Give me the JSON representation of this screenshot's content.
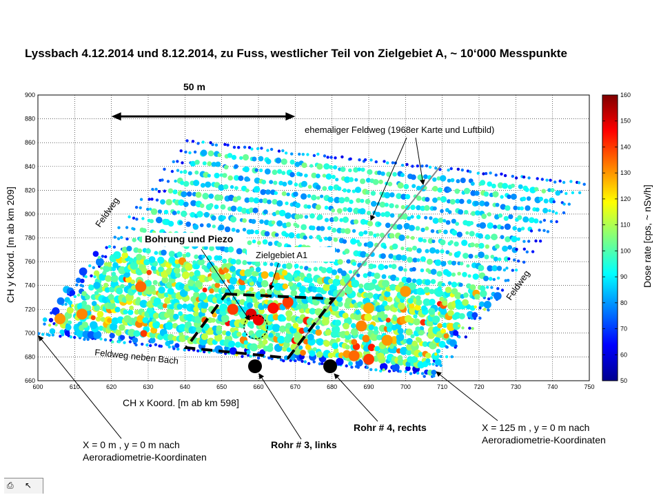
{
  "chart_data": {
    "type": "scatter",
    "title": "Lyssbach 4.12.2014 und 8.12.2014, zu Fuss, westlicher Teil von Zielgebiet A, ~ 10‘000 Messpunkte",
    "xlabel": "CH x Koord. [m ab km 598]",
    "ylabel": "CH y Koord. [m ab km 209]",
    "xlim": [
      600,
      750
    ],
    "ylim": [
      660,
      900
    ],
    "x_ticks": [
      "600",
      "610",
      "620",
      "630",
      "640",
      "650",
      "660",
      "670",
      "680",
      "690",
      "700",
      "710",
      "720",
      "730",
      "740",
      "750"
    ],
    "y_ticks": [
      "660",
      "680",
      "700",
      "720",
      "740",
      "760",
      "780",
      "800",
      "820",
      "840",
      "860",
      "880",
      "900"
    ],
    "grid": true,
    "colorbar": {
      "label": "Dose rate [cps, ~ nSv/h]",
      "range": [
        50,
        160
      ],
      "ticks": [
        "50",
        "60",
        "70",
        "80",
        "90",
        "100",
        "110",
        "120",
        "130",
        "140",
        "150",
        "160"
      ],
      "colormap": "jet"
    },
    "survey_area": {
      "corners": [
        [
          600,
          700
        ],
        [
          708,
          664
        ],
        [
          747,
          829
        ],
        [
          641,
          861
        ]
      ],
      "sampled_lines_count": 21,
      "approx_points": 10000
    },
    "hotspots": [
      {
        "x": 658,
        "y": 716,
        "value": 150
      },
      {
        "x": 664,
        "y": 721,
        "value": 145
      },
      {
        "x": 653,
        "y": 720,
        "value": 140
      },
      {
        "x": 660,
        "y": 711,
        "value": 148
      },
      {
        "x": 668,
        "y": 726,
        "value": 140
      },
      {
        "x": 628,
        "y": 739,
        "value": 135
      },
      {
        "x": 612,
        "y": 716,
        "value": 132
      },
      {
        "x": 606,
        "y": 712,
        "value": 130
      },
      {
        "x": 688,
        "y": 706,
        "value": 132
      },
      {
        "x": 686,
        "y": 681,
        "value": 135
      },
      {
        "x": 690,
        "y": 678,
        "value": 140
      },
      {
        "x": 695,
        "y": 694,
        "value": 130
      },
      {
        "x": 700,
        "y": 735,
        "value": 130
      },
      {
        "x": 690,
        "y": 721,
        "value": 128
      }
    ],
    "scale_bar": {
      "label": "50 m",
      "x_from": 620,
      "x_to": 670,
      "y": 882
    },
    "annotations": [
      {
        "id": "feldweg_1968",
        "text": "ehemaliger Feldweg (1968er Karte und Luftbild)"
      },
      {
        "id": "bohrung",
        "text": "Bohrung und Piezo"
      },
      {
        "id": "zielgebiet",
        "text": "Zielgebiet A1"
      },
      {
        "id": "feldweg_left",
        "text": "Feldweg"
      },
      {
        "id": "feldweg_right",
        "text": "Feldweg"
      },
      {
        "id": "feldweg_bach",
        "text": "Feldweg neben Bach"
      },
      {
        "id": "rohr3",
        "text": "Rohr # 3, links"
      },
      {
        "id": "rohr4",
        "text": "Rohr # 4, rechts"
      },
      {
        "id": "origin_line1",
        "text": "X = 0 m , y = 0 m nach"
      },
      {
        "id": "origin_line2",
        "text": "Aeroradiometrie-Koordinaten"
      },
      {
        "id": "corner_line1",
        "text": "X = 125 m , y = 0 m nach"
      },
      {
        "id": "corner_line2",
        "text": "Aeroradiometrie-Koordinaten"
      }
    ],
    "pipes": [
      {
        "x": 658,
        "y": 673
      },
      {
        "x": 679,
        "y": 673
      }
    ]
  },
  "toolbar": {
    "icons": [
      "figure-tool-icon",
      "arrow-tool-icon"
    ]
  }
}
